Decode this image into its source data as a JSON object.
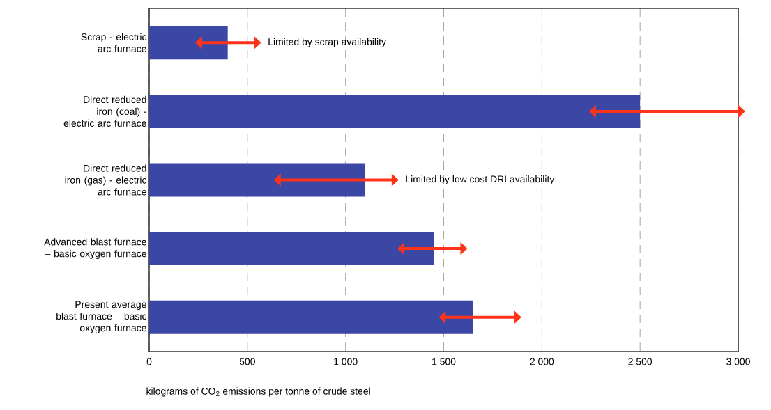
{
  "chart_data": {
    "type": "bar",
    "orientation": "horizontal",
    "categories": [
      "Scrap - electric arc furnace",
      "Direct reduced iron (coal) - electric arc furnace",
      "Direct reduced iron (gas) - electric arc furnace",
      "Advanced blast furnace – basic oxygen furnace",
      "Present average blast furnace – basic oxygen furnace"
    ],
    "values": [
      400,
      2500,
      1100,
      1450,
      1650
    ],
    "errors": [
      [
        270,
        535
      ],
      [
        2275,
        3000
      ],
      [
        670,
        1235
      ],
      [
        1300,
        1585
      ],
      [
        1510,
        1860
      ]
    ],
    "color": "#3a47a5",
    "xlim": [
      0,
      3000
    ],
    "xticks": [
      0,
      500,
      {
        "value": 1000,
        "label": "1 000"
      },
      {
        "value": 1500,
        "label": "1 500"
      },
      {
        "value": 2000,
        "label": "2 000"
      },
      {
        "value": 2500,
        "label": "2 500"
      },
      {
        "value": 3000,
        "label": "3 000"
      }
    ],
    "xlabel": "kilograms of CO$_{2}$ emissions per tonne of crude steel",
    "grid": "x",
    "annotations": [
      "Limited by scrap availability",
      "Limited by low cost DRI availability"
    ]
  }
}
